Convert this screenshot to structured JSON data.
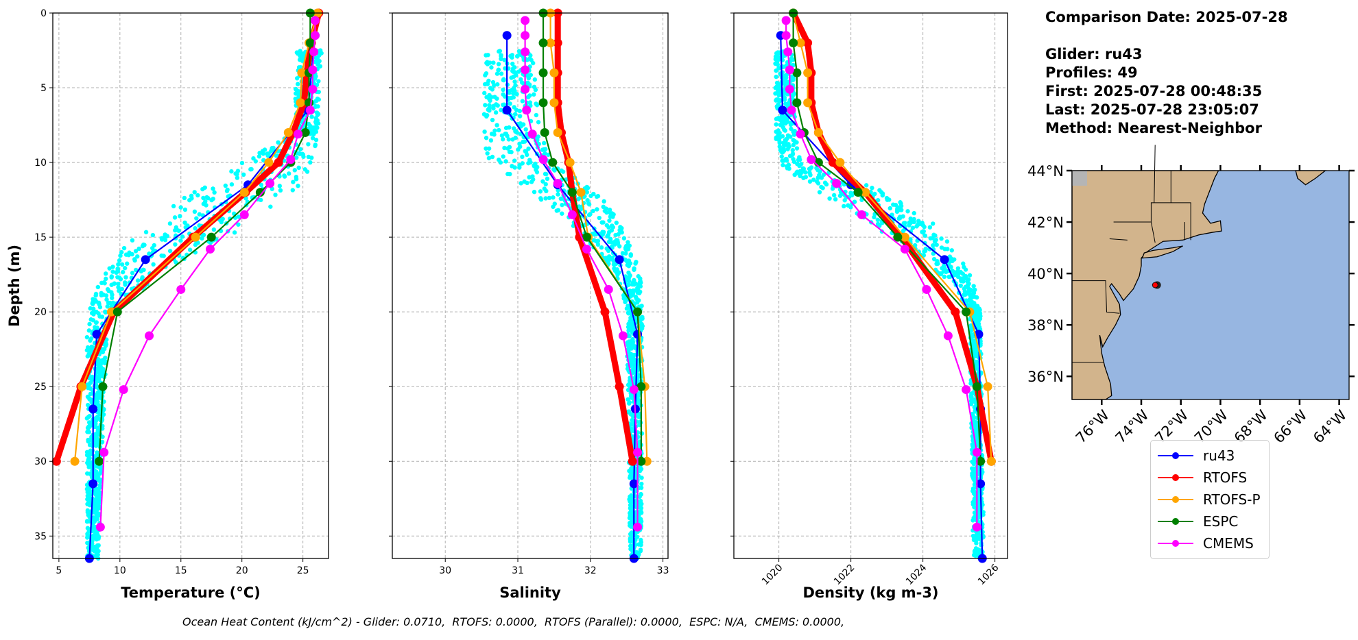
{
  "info": {
    "comparison_date": "Comparison Date: 2025-07-28",
    "glider": "Glider: ru43",
    "profiles": "Profiles: 49",
    "first": "First: 2025-07-28 00:48:35",
    "last": "Last: 2025-07-28 23:05:07",
    "method": "Method: Nearest-Neighbor"
  },
  "caption": "Ocean Heat Content (kJ/cm^2) - Glider: 0.0710,  RTOFS: 0.0000,  RTOFS (Parallel): 0.0000,  ESPC: N/A,  CMEMS: 0.0000,",
  "legend": [
    {
      "label": "ru43",
      "color": "#0000ff"
    },
    {
      "label": "RTOFS",
      "color": "#ff0000"
    },
    {
      "label": "RTOFS-P",
      "color": "#ffa500"
    },
    {
      "label": "ESPC",
      "color": "#008000"
    },
    {
      "label": "CMEMS",
      "color": "#ff00ff"
    }
  ],
  "chart_data": [
    {
      "type": "line",
      "panel": "temperature",
      "xlabel": "Temperature (°C)",
      "ylabel": "Depth (m)",
      "xlim": [
        4.5,
        27.1
      ],
      "ylim": [
        36.5,
        0
      ],
      "xticks": [
        5,
        10,
        15,
        20,
        25
      ],
      "yticks": [
        0,
        5,
        10,
        15,
        20,
        25,
        30,
        35
      ],
      "grid": true,
      "glider_scatter_envelope": [
        [
          2.5,
          24.5,
          26.6
        ],
        [
          8,
          24.3,
          26.3
        ],
        [
          9.5,
          21,
          26
        ],
        [
          11,
          18,
          25.5
        ],
        [
          13,
          14,
          23
        ],
        [
          15,
          11,
          19
        ],
        [
          17,
          9,
          14
        ],
        [
          19,
          7.8,
          11
        ],
        [
          20.5,
          7.3,
          9
        ],
        [
          37,
          7.3,
          8.2
        ]
      ],
      "series": [
        {
          "name": "ru43",
          "depth": [
            1.5,
            6.5,
            11.5,
            16.5,
            21.5,
            26.5,
            31.5,
            36.5
          ],
          "values": [
            26,
            25.4,
            20.5,
            12.1,
            8.1,
            7.8,
            7.8,
            7.5
          ]
        },
        {
          "name": "RTOFS",
          "depth": [
            0,
            2,
            4,
            6,
            8,
            10,
            12,
            15,
            20,
            25,
            30
          ],
          "values": [
            26.3,
            25.7,
            25.3,
            25.1,
            24.2,
            23,
            20.3,
            16,
            9.5,
            6.8,
            4.8
          ]
        },
        {
          "name": "RTOFS-P",
          "depth": [
            0,
            2,
            4,
            6,
            8,
            10,
            12,
            15,
            20,
            25,
            30
          ],
          "values": [
            26.2,
            25.5,
            24.9,
            24.8,
            23.8,
            22.2,
            20.2,
            16.2,
            9.3,
            6.9,
            6.3
          ]
        },
        {
          "name": "ESPC",
          "depth": [
            0,
            2,
            4,
            6,
            8,
            10,
            12,
            15,
            20,
            25,
            30
          ],
          "values": [
            25.6,
            25.6,
            25.5,
            25.5,
            25.2,
            24,
            21.5,
            17.5,
            9.8,
            8.6,
            8.3
          ]
        },
        {
          "name": "CMEMS",
          "depth": [
            0.5,
            1.5,
            2.6,
            3.8,
            5.1,
            6.5,
            8.1,
            9.8,
            11.4,
            13.5,
            15.8,
            18.5,
            21.6,
            25.2,
            29.4,
            34.4
          ],
          "values": [
            26,
            26,
            25.9,
            25.8,
            25.8,
            25.6,
            24.6,
            24,
            22.3,
            20.2,
            17.4,
            15,
            12.4,
            10.3,
            8.7,
            8.4
          ]
        }
      ]
    },
    {
      "type": "line",
      "panel": "salinity",
      "xlabel": "Salinity",
      "xlim": [
        29.27,
        33.07
      ],
      "ylim": [
        36.5,
        0
      ],
      "xticks": [
        30,
        31,
        32,
        33
      ],
      "grid": true,
      "glider_scatter_envelope": [
        [
          2.5,
          30.55,
          31.2
        ],
        [
          8,
          30.5,
          31.3
        ],
        [
          10,
          30.6,
          31.5
        ],
        [
          12,
          31.2,
          32.1
        ],
        [
          14,
          31.7,
          32.4
        ],
        [
          16,
          32.1,
          32.6
        ],
        [
          18,
          32.4,
          32.7
        ],
        [
          20,
          32.5,
          32.72
        ],
        [
          37,
          32.55,
          32.7
        ]
      ],
      "series": [
        {
          "name": "ru43",
          "depth": [
            1.5,
            6.5,
            11.5,
            16.5,
            21.5,
            26.5,
            31.5,
            36.5
          ],
          "values": [
            30.85,
            30.85,
            31.55,
            32.4,
            32.65,
            32.62,
            32.6,
            32.6
          ]
        },
        {
          "name": "RTOFS",
          "depth": [
            0,
            2,
            4,
            6,
            8,
            10,
            12,
            15,
            20,
            25,
            30
          ],
          "values": [
            31.55,
            31.55,
            31.55,
            31.55,
            31.6,
            31.7,
            31.75,
            31.85,
            32.2,
            32.4,
            32.58
          ]
        },
        {
          "name": "RTOFS-P",
          "depth": [
            0,
            2,
            4,
            6,
            8,
            10,
            12,
            15,
            20,
            25,
            30
          ],
          "values": [
            31.45,
            31.45,
            31.5,
            31.5,
            31.55,
            31.72,
            31.87,
            31.97,
            32.65,
            32.75,
            32.78
          ]
        },
        {
          "name": "ESPC",
          "depth": [
            0,
            2,
            4,
            6,
            8,
            10,
            12,
            15,
            20,
            25,
            30
          ],
          "values": [
            31.35,
            31.35,
            31.35,
            31.35,
            31.37,
            31.48,
            31.75,
            31.95,
            32.65,
            32.7,
            32.7
          ]
        },
        {
          "name": "CMEMS",
          "depth": [
            0.5,
            1.5,
            2.6,
            3.8,
            5.1,
            6.5,
            8.1,
            9.8,
            11.4,
            13.5,
            15.8,
            18.5,
            21.6,
            25.2,
            29.4,
            34.4
          ],
          "values": [
            31.1,
            31.1,
            31.1,
            31.1,
            31.1,
            31.12,
            31.2,
            31.35,
            31.55,
            31.75,
            31.95,
            32.25,
            32.45,
            32.6,
            32.65,
            32.65
          ]
        }
      ]
    },
    {
      "type": "line",
      "panel": "density",
      "xlabel": "Density (kg m-3)",
      "xlim": [
        1018.75,
        1026.35
      ],
      "ylim": [
        36.5,
        0
      ],
      "xticks": [
        1020,
        1022,
        1024,
        1026
      ],
      "grid": true,
      "glider_scatter_envelope": [
        [
          2.5,
          1019.9,
          1020.4
        ],
        [
          8,
          1019.9,
          1020.45
        ],
        [
          10,
          1020.0,
          1020.6
        ],
        [
          12,
          1021,
          1023
        ],
        [
          14,
          1022.5,
          1024.3
        ],
        [
          16,
          1023.6,
          1025
        ],
        [
          18,
          1024.8,
          1025.4
        ],
        [
          20,
          1025.3,
          1025.6
        ],
        [
          37,
          1025.4,
          1025.7
        ]
      ],
      "series": [
        {
          "name": "ru43",
          "depth": [
            1.5,
            6.5,
            11.5,
            16.5,
            21.5,
            26.5,
            31.5,
            36.5
          ],
          "values": [
            1020.05,
            1020.1,
            1022,
            1024.6,
            1025.55,
            1025.6,
            1025.6,
            1025.65
          ]
        },
        {
          "name": "RTOFS",
          "depth": [
            0,
            2,
            4,
            6,
            8,
            10,
            12,
            15,
            20,
            25,
            30
          ],
          "values": [
            1020.4,
            1020.8,
            1020.9,
            1020.9,
            1021.1,
            1021.5,
            1022.4,
            1023.4,
            1024.9,
            1025.5,
            1025.9
          ]
        },
        {
          "name": "RTOFS-P",
          "depth": [
            0,
            2,
            4,
            6,
            8,
            10,
            12,
            15,
            20,
            25,
            30
          ],
          "values": [
            1020.4,
            1020.6,
            1020.8,
            1020.8,
            1021.1,
            1021.7,
            1022.4,
            1023.5,
            1025.3,
            1025.8,
            1025.9
          ]
        },
        {
          "name": "ESPC",
          "depth": [
            0,
            2,
            4,
            6,
            8,
            10,
            12,
            15,
            20,
            25,
            30
          ],
          "values": [
            1020.4,
            1020.4,
            1020.5,
            1020.5,
            1020.7,
            1021.1,
            1022.2,
            1023.3,
            1025.2,
            1025.5,
            1025.6
          ]
        },
        {
          "name": "CMEMS",
          "depth": [
            0.5,
            1.5,
            2.6,
            3.8,
            5.1,
            6.5,
            8.1,
            9.8,
            11.4,
            13.5,
            15.8,
            18.5,
            21.6,
            25.2,
            29.4,
            34.4
          ],
          "values": [
            1020.2,
            1020.2,
            1020.25,
            1020.3,
            1020.3,
            1020.35,
            1020.6,
            1020.9,
            1021.6,
            1022.3,
            1023.5,
            1024.1,
            1024.7,
            1025.2,
            1025.5,
            1025.5
          ]
        }
      ]
    }
  ],
  "map": {
    "lat_range": [
      35.1,
      44
    ],
    "lon_range": [
      -77.5,
      -63.5
    ],
    "lat_ticks": [
      "36°N",
      "38°N",
      "40°N",
      "42°N",
      "44°N"
    ],
    "lat_values": [
      36,
      38,
      40,
      42,
      44
    ],
    "lon_ticks": [
      "76°W",
      "74°W",
      "72°W",
      "70°W",
      "68°W",
      "66°W",
      "64°W"
    ],
    "lon_values": [
      -76,
      -74,
      -72,
      -70,
      -68,
      -66,
      -64
    ],
    "glider_position": [
      -73.3,
      39.55
    ],
    "ocean_color": "#97b6e1",
    "land_color": "#d2b48c",
    "glider_color": "#ff0000"
  },
  "scatter_color": "#00ffff"
}
